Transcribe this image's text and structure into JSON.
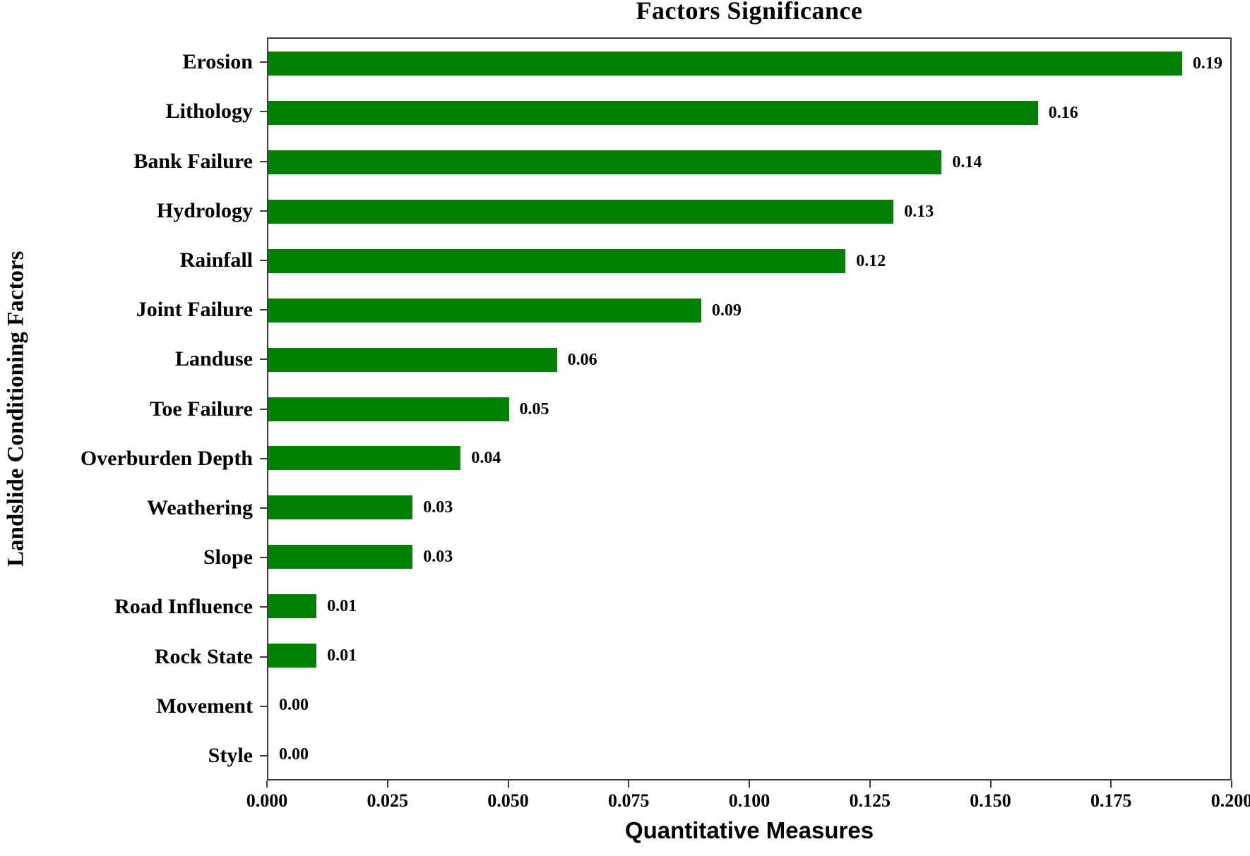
{
  "chart_data": {
    "type": "bar",
    "orientation": "horizontal",
    "title": "Factors Significance",
    "xlabel": "Quantitative Measures",
    "ylabel": "Landslide Conditioning Factors",
    "categories": [
      "Erosion",
      "Lithology",
      "Bank Failure",
      "Hydrology",
      "Rainfall",
      "Joint Failure",
      "Landuse",
      "Toe Failure",
      "Overburden Depth",
      "Weathering",
      "Slope",
      "Road Influence",
      "Rock State",
      "Movement",
      "Style"
    ],
    "values": [
      0.19,
      0.16,
      0.14,
      0.13,
      0.12,
      0.09,
      0.06,
      0.05,
      0.04,
      0.03,
      0.03,
      0.01,
      0.01,
      0.0,
      0.0
    ],
    "value_labels": [
      "0.19",
      "0.16",
      "0.14",
      "0.13",
      "0.12",
      "0.09",
      "0.06",
      "0.05",
      "0.04",
      "0.03",
      "0.03",
      "0.01",
      "0.01",
      "0.00",
      "0.00"
    ],
    "xlim": [
      0,
      0.2
    ],
    "x_tick_labels": [
      "0.000",
      "0.025",
      "0.050",
      "0.075",
      "0.100",
      "0.125",
      "0.150",
      "0.175",
      "0.200"
    ],
    "bar_color": "#008000",
    "grid": false,
    "legend_position": "none"
  }
}
